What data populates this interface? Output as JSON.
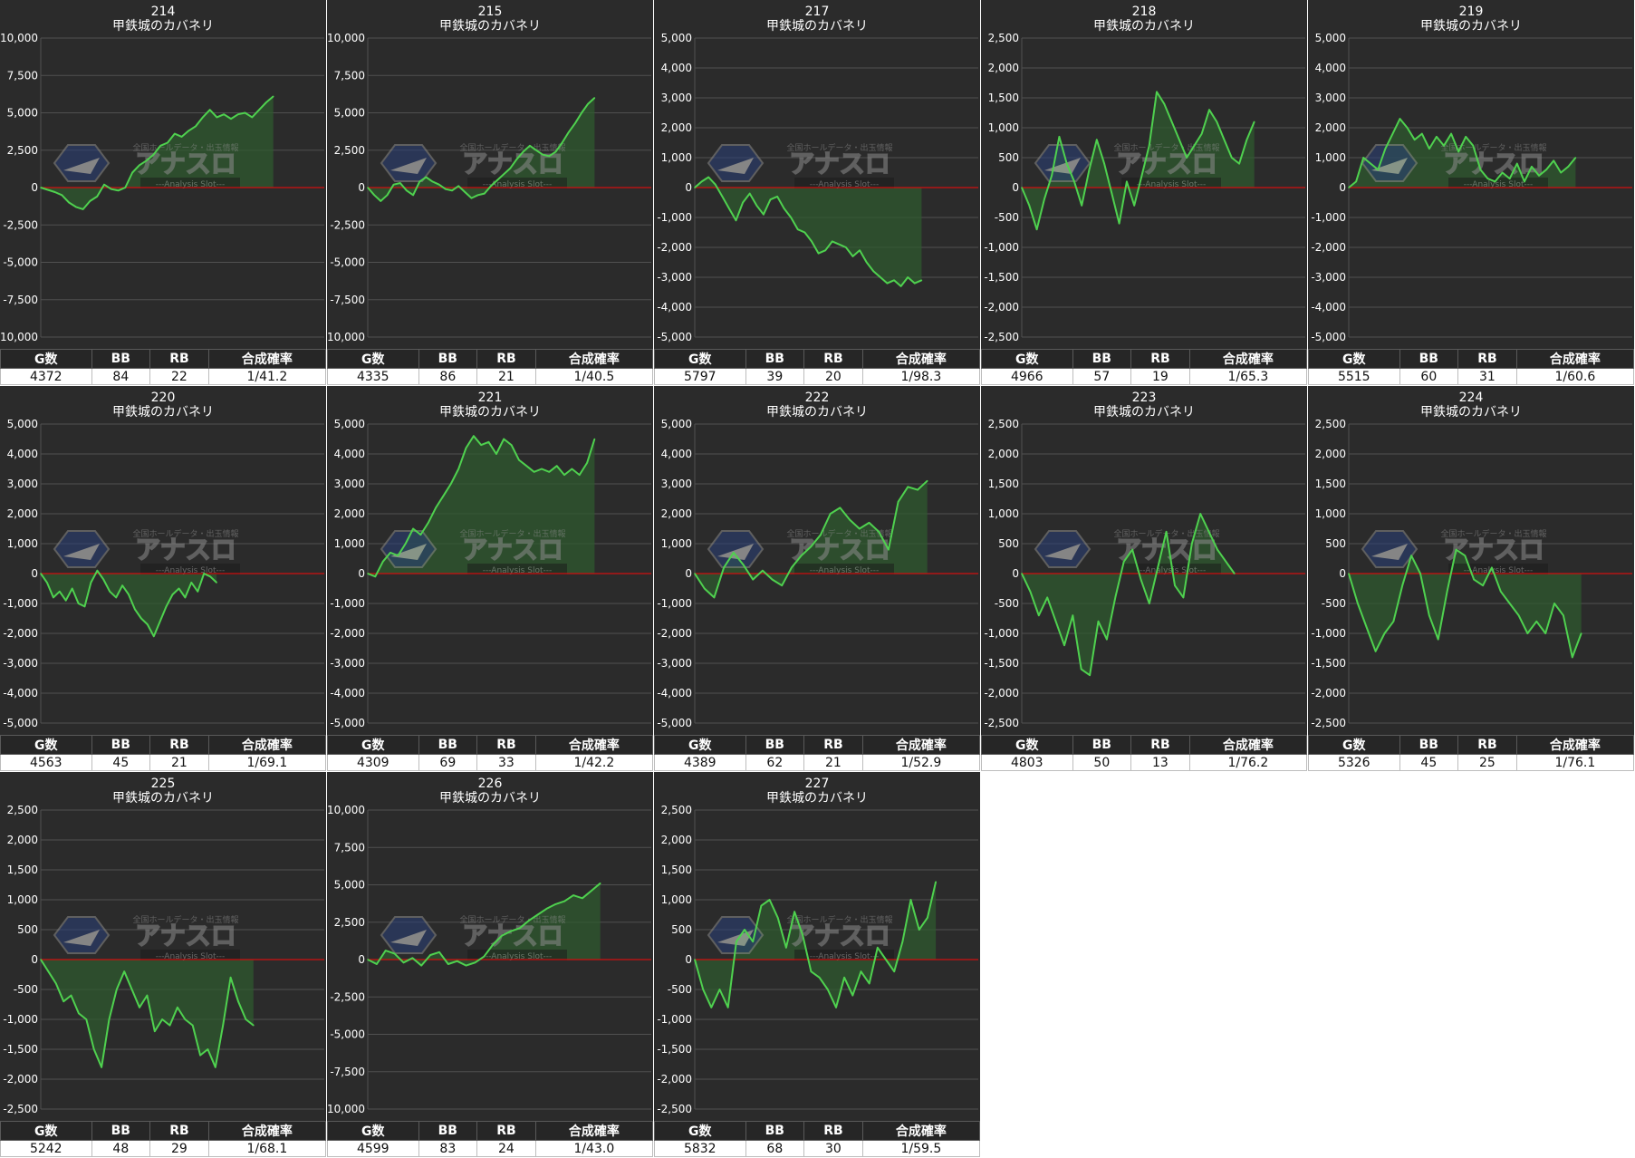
{
  "headers": [
    "G数",
    "BB",
    "RB",
    "合成確率"
  ],
  "colors": {
    "background": "#2b2b2b",
    "line": "#4fd14f",
    "fill": "#2f5a2f",
    "zero_line": "#d01010",
    "grid": "#505050",
    "text": "#ffffff"
  },
  "watermark": {
    "text": "アナスロ",
    "sub_text": "Analysis Slot",
    "top_text": "全国ホールデータ・出玉情報"
  },
  "panels": [
    {
      "number": "214",
      "machine": "甲鉄城のカバネリ",
      "g": "4372",
      "bb": "84",
      "rb": "22",
      "prob": "1/41.2"
    },
    {
      "number": "215",
      "machine": "甲鉄城のカバネリ",
      "g": "4335",
      "bb": "86",
      "rb": "21",
      "prob": "1/40.5"
    },
    {
      "number": "217",
      "machine": "甲鉄城のカバネリ",
      "g": "5797",
      "bb": "39",
      "rb": "20",
      "prob": "1/98.3"
    },
    {
      "number": "218",
      "machine": "甲鉄城のカバネリ",
      "g": "4966",
      "bb": "57",
      "rb": "19",
      "prob": "1/65.3"
    },
    {
      "number": "219",
      "machine": "甲鉄城のカバネリ",
      "g": "5515",
      "bb": "60",
      "rb": "31",
      "prob": "1/60.6"
    },
    {
      "number": "220",
      "machine": "甲鉄城のカバネリ",
      "g": "4563",
      "bb": "45",
      "rb": "21",
      "prob": "1/69.1"
    },
    {
      "number": "221",
      "machine": "甲鉄城のカバネリ",
      "g": "4309",
      "bb": "69",
      "rb": "33",
      "prob": "1/42.2"
    },
    {
      "number": "222",
      "machine": "甲鉄城のカバネリ",
      "g": "4389",
      "bb": "62",
      "rb": "21",
      "prob": "1/52.9"
    },
    {
      "number": "223",
      "machine": "甲鉄城のカバネリ",
      "g": "4803",
      "bb": "50",
      "rb": "13",
      "prob": "1/76.2"
    },
    {
      "number": "224",
      "machine": "甲鉄城のカバネリ",
      "g": "5326",
      "bb": "45",
      "rb": "25",
      "prob": "1/76.1"
    },
    {
      "number": "225",
      "machine": "甲鉄城のカバネリ",
      "g": "5242",
      "bb": "48",
      "rb": "29",
      "prob": "1/68.1"
    },
    {
      "number": "226",
      "machine": "甲鉄城のカバネリ",
      "g": "4599",
      "bb": "83",
      "rb": "24",
      "prob": "1/43.0"
    },
    {
      "number": "227",
      "machine": "甲鉄城のカバネリ",
      "g": "5832",
      "bb": "68",
      "rb": "30",
      "prob": "1/59.5"
    }
  ],
  "chart_data": [
    {
      "type": "area",
      "title": "214",
      "subtitle": "甲鉄城のカバネリ",
      "ylim": [
        -10000,
        10000
      ],
      "yticks": [
        "10,000",
        "7,500",
        "5,000",
        "2,500",
        "0",
        "-2,500",
        "-5,000",
        "-7,500",
        "-10,000"
      ],
      "x_fraction": 0.82,
      "values": [
        0,
        -150,
        -300,
        -500,
        -1000,
        -1300,
        -1450,
        -900,
        -600,
        200,
        -100,
        -200,
        0,
        1000,
        1500,
        1800,
        2200,
        2800,
        3000,
        3600,
        3400,
        3800,
        4100,
        4700,
        5200,
        4700,
        4900,
        4600,
        4900,
        5000,
        4700,
        5200,
        5700,
        6100
      ]
    },
    {
      "type": "area",
      "title": "215",
      "subtitle": "甲鉄城のカバネリ",
      "ylim": [
        -10000,
        10000
      ],
      "yticks": [
        "10,000",
        "7,500",
        "5,000",
        "2,500",
        "0",
        "-2,500",
        "-5,000",
        "-7,500",
        "-10,000"
      ],
      "x_fraction": 0.8,
      "values": [
        0,
        -500,
        -900,
        -500,
        200,
        300,
        -200,
        -500,
        400,
        700,
        400,
        200,
        -100,
        -200,
        100,
        -300,
        -700,
        -500,
        -400,
        100,
        500,
        900,
        1300,
        1900,
        2400,
        2800,
        2500,
        2200,
        2100,
        2400,
        3000,
        3700,
        4300,
        5000,
        5600,
        6000
      ]
    },
    {
      "type": "area",
      "title": "217",
      "subtitle": "甲鉄城のカバネリ",
      "ylim": [
        -5000,
        5000
      ],
      "yticks": [
        "5,000",
        "4,000",
        "3,000",
        "2,000",
        "1,000",
        "0",
        "-1,000",
        "-2,000",
        "-3,000",
        "-4,000",
        "-5,000"
      ],
      "x_fraction": 0.8,
      "values": [
        0,
        200,
        350,
        100,
        -300,
        -700,
        -1100,
        -500,
        -200,
        -600,
        -900,
        -400,
        -300,
        -700,
        -1000,
        -1400,
        -1500,
        -1800,
        -2200,
        -2100,
        -1800,
        -1900,
        -2000,
        -2300,
        -2100,
        -2500,
        -2800,
        -3000,
        -3200,
        -3100,
        -3300,
        -3000,
        -3200,
        -3100
      ]
    },
    {
      "type": "area",
      "title": "218",
      "subtitle": "甲鉄城のカバネリ",
      "ylim": [
        -2500,
        2500
      ],
      "yticks": [
        "2,500",
        "2,000",
        "1,500",
        "1,000",
        "500",
        "0",
        "-500",
        "-1,000",
        "-1,500",
        "-2,000",
        "-2,500"
      ],
      "x_fraction": 0.82,
      "values": [
        0,
        -300,
        -700,
        -200,
        200,
        850,
        400,
        100,
        -300,
        300,
        800,
        400,
        -100,
        -600,
        100,
        -300,
        200,
        700,
        1600,
        1400,
        1100,
        800,
        500,
        700,
        900,
        1300,
        1100,
        800,
        500,
        400,
        800,
        1100
      ]
    },
    {
      "type": "area",
      "title": "219",
      "subtitle": "甲鉄城のカバネリ",
      "ylim": [
        -5000,
        5000
      ],
      "yticks": [
        "5,000",
        "4,000",
        "3,000",
        "2,000",
        "1,000",
        "0",
        "-1,000",
        "-2,000",
        "-3,000",
        "-4,000",
        "-5,000"
      ],
      "x_fraction": 0.8,
      "values": [
        0,
        200,
        1000,
        800,
        600,
        1300,
        1800,
        2300,
        2000,
        1600,
        1800,
        1300,
        1700,
        1400,
        1800,
        1200,
        1700,
        1400,
        600,
        300,
        200,
        500,
        300,
        800,
        200,
        700,
        400,
        600,
        900,
        500,
        700,
        1000
      ]
    },
    {
      "type": "area",
      "title": "220",
      "subtitle": "甲鉄城のカバネリ",
      "ylim": [
        -5000,
        5000
      ],
      "yticks": [
        "5,000",
        "4,000",
        "3,000",
        "2,000",
        "1,000",
        "0",
        "-1,000",
        "-2,000",
        "-3,000",
        "-4,000",
        "-5,000"
      ],
      "x_fraction": 0.62,
      "values": [
        0,
        -300,
        -800,
        -600,
        -900,
        -500,
        -1000,
        -1100,
        -300,
        100,
        -200,
        -600,
        -800,
        -400,
        -700,
        -1200,
        -1500,
        -1700,
        -2100,
        -1600,
        -1100,
        -700,
        -500,
        -800,
        -300,
        -600,
        0,
        -100,
        -300
      ]
    },
    {
      "type": "area",
      "title": "221",
      "subtitle": "甲鉄城のカバネリ",
      "ylim": [
        -5000,
        5000
      ],
      "yticks": [
        "5,000",
        "4,000",
        "3,000",
        "2,000",
        "1,000",
        "0",
        "-1,000",
        "-2,000",
        "-3,000",
        "-4,000",
        "-5,000"
      ],
      "x_fraction": 0.8,
      "values": [
        0,
        -100,
        400,
        700,
        600,
        1000,
        1500,
        1300,
        1700,
        2200,
        2600,
        3000,
        3500,
        4200,
        4600,
        4300,
        4400,
        4000,
        4500,
        4300,
        3800,
        3600,
        3400,
        3500,
        3400,
        3600,
        3300,
        3500,
        3300,
        3700,
        4500
      ]
    },
    {
      "type": "area",
      "title": "222",
      "subtitle": "甲鉄城のカバネリ",
      "ylim": [
        -5000,
        5000
      ],
      "yticks": [
        "5,000",
        "4,000",
        "3,000",
        "2,000",
        "1,000",
        "0",
        "-1,000",
        "-2,000",
        "-3,000",
        "-4,000",
        "-5,000"
      ],
      "x_fraction": 0.82,
      "values": [
        0,
        -500,
        -800,
        200,
        700,
        300,
        -200,
        100,
        -200,
        -400,
        200,
        600,
        900,
        1300,
        2000,
        2200,
        1800,
        1500,
        1700,
        1400,
        800,
        2400,
        2900,
        2800,
        3100
      ]
    },
    {
      "type": "area",
      "title": "223",
      "subtitle": "甲鉄城のカバネリ",
      "ylim": [
        -2500,
        2500
      ],
      "yticks": [
        "2,500",
        "2,000",
        "1,500",
        "1,000",
        "500",
        "0",
        "-500",
        "-1,000",
        "-1,500",
        "-2,000",
        "-2,500"
      ],
      "x_fraction": 0.75,
      "values": [
        0,
        -300,
        -700,
        -400,
        -800,
        -1200,
        -700,
        -1600,
        -1700,
        -800,
        -1100,
        -400,
        200,
        400,
        -100,
        -500,
        100,
        700,
        -200,
        -400,
        500,
        1000,
        700,
        400,
        200,
        0
      ]
    },
    {
      "type": "area",
      "title": "224",
      "subtitle": "甲鉄城のカバネリ",
      "ylim": [
        -2500,
        2500
      ],
      "yticks": [
        "2,500",
        "2,000",
        "1,500",
        "1,000",
        "500",
        "0",
        "-500",
        "-1,000",
        "-1,500",
        "-2,000",
        "-2,500"
      ],
      "x_fraction": 0.82,
      "values": [
        0,
        -500,
        -900,
        -1300,
        -1000,
        -800,
        -200,
        300,
        0,
        -700,
        -1100,
        -300,
        400,
        300,
        -100,
        -200,
        100,
        -300,
        -500,
        -700,
        -1000,
        -800,
        -1000,
        -500,
        -700,
        -1400,
        -1000
      ]
    },
    {
      "type": "area",
      "title": "225",
      "subtitle": "甲鉄城のカバネリ",
      "ylim": [
        -2500,
        2500
      ],
      "yticks": [
        "2,500",
        "2,000",
        "1,500",
        "1,000",
        "500",
        "0",
        "-500",
        "-1,000",
        "-1,500",
        "-2,000",
        "-2,500"
      ],
      "x_fraction": 0.75,
      "values": [
        0,
        -200,
        -400,
        -700,
        -600,
        -900,
        -1000,
        -1500,
        -1800,
        -1000,
        -500,
        -200,
        -500,
        -800,
        -600,
        -1200,
        -1000,
        -1100,
        -800,
        -1000,
        -1100,
        -1600,
        -1500,
        -1800,
        -1100,
        -300,
        -700,
        -1000,
        -1100
      ]
    },
    {
      "type": "area",
      "title": "226",
      "subtitle": "甲鉄城のカバネリ",
      "ylim": [
        -10000,
        10000
      ],
      "yticks": [
        "10,000",
        "7,500",
        "5,000",
        "2,500",
        "0",
        "-2,500",
        "-5,000",
        "-7,500",
        "-10,000"
      ],
      "x_fraction": 0.82,
      "values": [
        0,
        -300,
        600,
        400,
        -200,
        100,
        -400,
        300,
        500,
        -300,
        -100,
        -400,
        -200,
        200,
        1000,
        1600,
        1900,
        2100,
        2600,
        3000,
        3400,
        3700,
        3900,
        4300,
        4100,
        4600,
        5100
      ]
    },
    {
      "type": "area",
      "title": "227",
      "subtitle": "甲鉄城のカバネリ",
      "ylim": [
        -2500,
        2500
      ],
      "yticks": [
        "2,500",
        "2,000",
        "1,500",
        "1,000",
        "500",
        "0",
        "-500",
        "-1,000",
        "-1,500",
        "-2,000",
        "-2,500"
      ],
      "x_fraction": 0.85,
      "values": [
        0,
        -500,
        -800,
        -500,
        -800,
        300,
        500,
        300,
        900,
        1000,
        700,
        200,
        800,
        400,
        -200,
        -300,
        -500,
        -800,
        -300,
        -600,
        -200,
        -400,
        200,
        0,
        -200,
        300,
        1000,
        500,
        700,
        1300
      ]
    }
  ]
}
